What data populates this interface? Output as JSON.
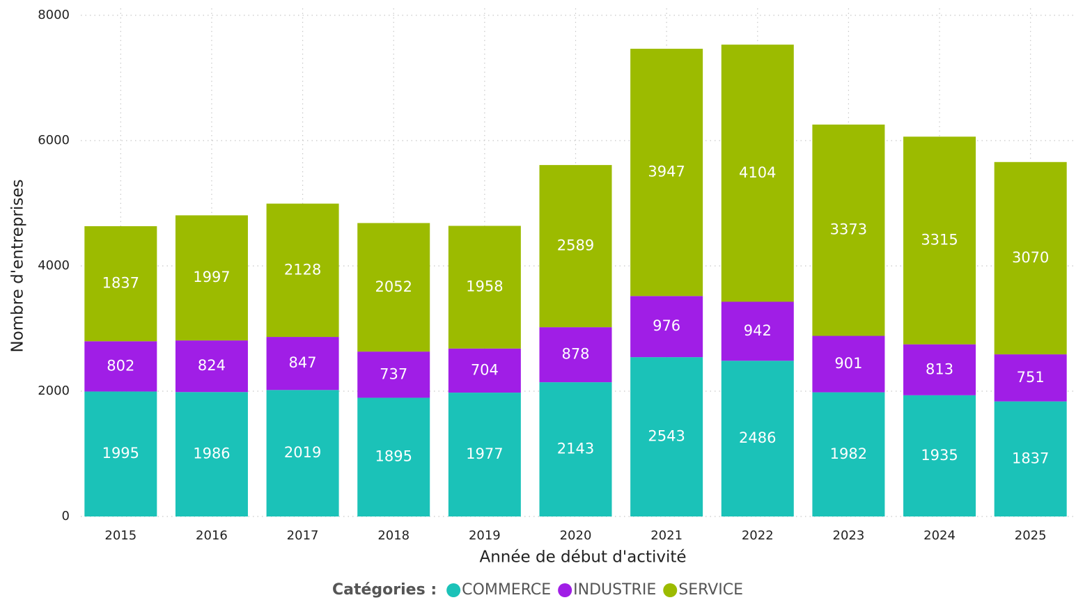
{
  "chart_data": {
    "type": "stacked_bar",
    "x_label": "Année de début d'activité",
    "y_label": "Nombre d'entreprises",
    "legend_title": "Catégories :",
    "legend_position": "bottom",
    "grid": true,
    "categories": [
      "2015",
      "2016",
      "2017",
      "2018",
      "2019",
      "2020",
      "2021",
      "2022",
      "2023",
      "2024",
      "2025"
    ],
    "series": [
      {
        "name": "COMMERCE",
        "color": "#1bc2b8",
        "values": [
          1995,
          1986,
          2019,
          1895,
          1977,
          2143,
          2543,
          2486,
          1982,
          1935,
          1837
        ]
      },
      {
        "name": "INDUSTRIE",
        "color": "#a01ee6",
        "values": [
          802,
          824,
          847,
          737,
          704,
          878,
          976,
          942,
          901,
          813,
          751
        ]
      },
      {
        "name": "SERVICE",
        "color": "#9cbb00",
        "values": [
          1837,
          1997,
          2128,
          2052,
          1958,
          2589,
          3947,
          4104,
          3373,
          3315,
          3070
        ]
      }
    ],
    "ylim": [
      0,
      8000
    ],
    "yticks": [
      0,
      2000,
      4000,
      6000,
      8000
    ]
  }
}
